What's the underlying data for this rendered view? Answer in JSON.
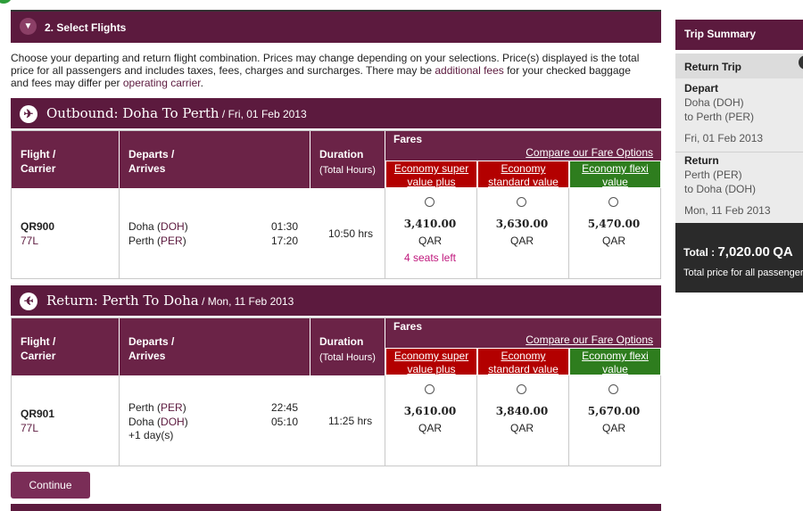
{
  "section": {
    "title": "2. Select Flights"
  },
  "intro": {
    "text_1": "Choose your departing and return flight combination. Prices may change depending on your selections. Price(s) displayed is the total",
    "text_2a": "price for all passengers and includes taxes, fees, charges and surcharges. There may be ",
    "link_fees": "additional fees",
    "text_2b": " for your checked baggage",
    "text_3a": "and fees may differ per ",
    "link_carrier": "operating carrier",
    "text_3b": "."
  },
  "table_headers": {
    "flight_1": "Flight /",
    "flight_2": "Carrier",
    "departs_1": "Departs /",
    "departs_2": "Arrives",
    "duration_1": "Duration",
    "duration_2": "(Total Hours)",
    "fares": "Fares",
    "compare": "Compare our Fare Options",
    "fare_1a": "Economy super",
    "fare_1b": "value plus",
    "fare_2a": "Economy",
    "fare_2b": "standard value",
    "fare_3a": "Economy flexi",
    "fare_3b": "value"
  },
  "outbound": {
    "title": "Outbound: Doha To Perth",
    "date": " / Fri, 01 Feb 2013",
    "flight": "QR900",
    "aircraft": "77L",
    "from_city": "Doha (",
    "from_code": "DOH",
    "from_close": ")",
    "to_city": "Perth (",
    "to_code": "PER",
    "to_close": ")",
    "dep_time": "01:30",
    "arr_time": "17:20",
    "duration": "10:50 hrs",
    "price_1": "3,410.00",
    "price_2": "3,630.00",
    "price_3": "5,470.00",
    "currency": "QAR",
    "seats_left": "4 seats left"
  },
  "return": {
    "title": "Return: Perth To Doha",
    "date": " / Mon, 11 Feb 2013",
    "flight": "QR901",
    "aircraft": "77L",
    "from_city": "Perth (",
    "from_code": "PER",
    "from_close": ")",
    "to_city": "Doha (",
    "to_code": "DOH",
    "to_close": ")",
    "day_offset": "+1 day(s)",
    "dep_time": "22:45",
    "arr_time": "05:10",
    "duration": "11:25 hrs",
    "price_1": "3,610.00",
    "price_2": "3,840.00",
    "price_3": "5,670.00",
    "currency": "QAR"
  },
  "continue_label": "Continue",
  "summary": {
    "title": "Trip Summary",
    "trip_type": "Return Trip",
    "depart_label": "Depart",
    "depart_from": "Doha (DOH)",
    "depart_to": "to Perth (PER)",
    "depart_date": "Fri, 01 Feb 2013",
    "return_label": "Return",
    "return_from": "Perth (PER)",
    "return_to": "to Doha (DOH)",
    "return_date": "Mon, 11 Feb 2013",
    "total_label": "Total :",
    "total_value": "7,020.00",
    "total_currency": "QA",
    "total_note": "Total price for all passenger"
  },
  "colors": {
    "brand": "#5c1a3e",
    "header_row": "#6b2347",
    "fare_red": "#b30000",
    "fare_green": "#2e7d1e",
    "link": "#5c1a3e"
  }
}
